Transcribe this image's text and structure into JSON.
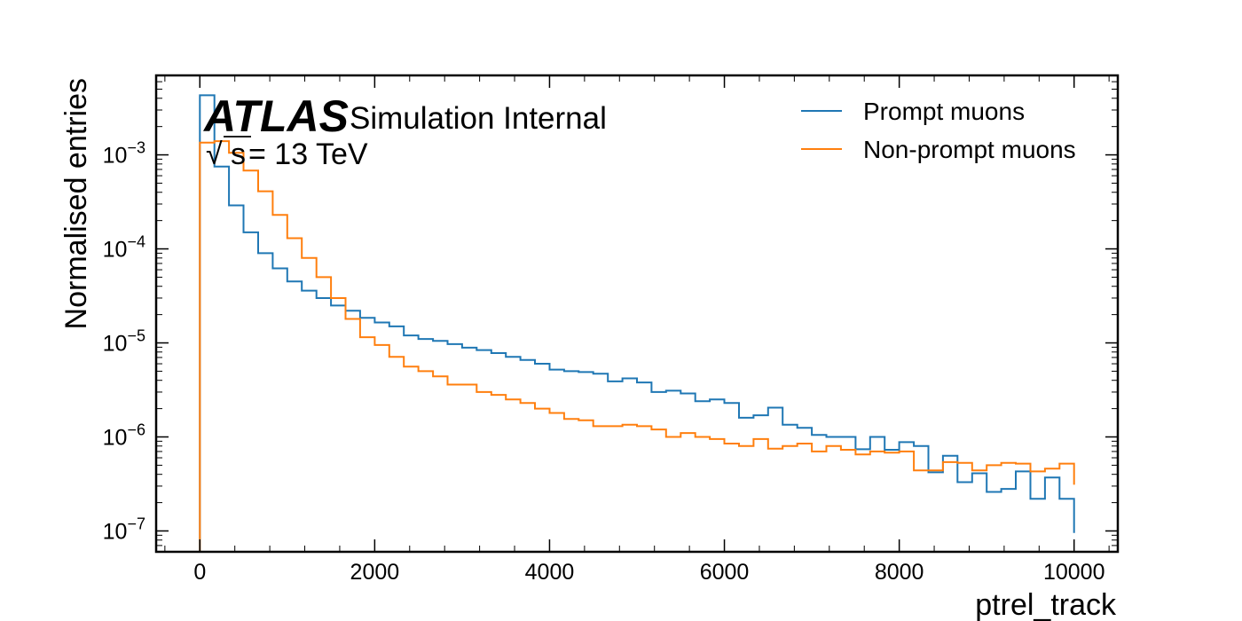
{
  "chart_data": {
    "type": "line",
    "title": "",
    "xlabel": "ptrel_track",
    "ylabel": "Normalised entries",
    "xlim": [
      -500,
      10500
    ],
    "ylim": [
      6e-08,
      0.007
    ],
    "yscale": "log",
    "x_ticks": [
      0,
      2000,
      4000,
      6000,
      8000,
      10000
    ],
    "x_tick_labels": [
      "0",
      "2000",
      "4000",
      "6000",
      "8000",
      "10000"
    ],
    "y_ticks": [
      1e-07,
      1e-06,
      1e-05,
      0.0001,
      0.001
    ],
    "y_tick_bases": [
      "10",
      "10",
      "10",
      "10",
      "10"
    ],
    "y_tick_exponents": [
      "−7",
      "−6",
      "−5",
      "−4",
      "−3"
    ],
    "grid": false,
    "legend_position": "top-right",
    "annotation": {
      "atlas": "ATLAS",
      "subtitle": "Simulation Internal",
      "energy_sqrt": "√",
      "energy_s": "s",
      "energy_rest": " = 13 TeV"
    },
    "bin_edges": [
      0,
      166.67,
      333.33,
      500,
      666.67,
      833.33,
      1000,
      1166.67,
      1333.33,
      1500,
      1666.67,
      1833.33,
      2000,
      2166.67,
      2333.33,
      2500,
      2666.67,
      2833.33,
      3000,
      3166.67,
      3333.33,
      3500,
      3666.67,
      3833.33,
      4000,
      4166.67,
      4333.33,
      4500,
      4666.67,
      4833.33,
      5000,
      5166.67,
      5333.33,
      5500,
      5666.67,
      5833.33,
      6000,
      6166.67,
      6333.33,
      6500,
      6666.67,
      6833.33,
      7000,
      7166.67,
      7333.33,
      7500,
      7666.67,
      7833.33,
      8000,
      8166.67,
      8333.33,
      8500,
      8666.67,
      8833.33,
      9000,
      9166.67,
      9333.33,
      9500,
      9666.67,
      9833.33,
      10000
    ],
    "series": [
      {
        "name": "Prompt muons",
        "color": "#1f77b4",
        "values": [
          0.0043,
          0.00075,
          0.00029,
          0.00015,
          9e-05,
          6.2e-05,
          4.5e-05,
          3.6e-05,
          3e-05,
          2.5e-05,
          2.2e-05,
          1.85e-05,
          1.65e-05,
          1.5e-05,
          1.2e-05,
          1.1e-05,
          1.05e-05,
          9.7e-06,
          8.9e-06,
          8.4e-06,
          7.8e-06,
          7.1e-06,
          6.6e-06,
          6e-06,
          5.2e-06,
          5e-06,
          4.9e-06,
          4.7e-06,
          3.9e-06,
          4.2e-06,
          3.8e-06,
          3e-06,
          3.1e-06,
          2.9e-06,
          2.4e-06,
          2.5e-06,
          2.3e-06,
          1.6e-06,
          1.7e-06,
          2.05e-06,
          1.35e-06,
          1.25e-06,
          1.05e-06,
          1e-06,
          1e-06,
          7.4e-07,
          1e-06,
          7.3e-07,
          8.8e-07,
          8e-07,
          4.2e-07,
          6.3e-07,
          3.3e-07,
          4.1e-07,
          2.6e-07,
          2.8e-07,
          4.3e-07,
          2.2e-07,
          3.7e-07,
          2.2e-07,
          9.5e-08
        ]
      },
      {
        "name": "Non-prompt muons",
        "color": "#ff7f0e",
        "values": [
          0.00135,
          0.0014,
          0.00105,
          0.00068,
          0.00041,
          0.00023,
          0.00013,
          8e-05,
          5e-05,
          3e-05,
          1.8e-05,
          1.15e-05,
          9.5e-06,
          7.1e-06,
          5.6e-06,
          5e-06,
          4.4e-06,
          3.6e-06,
          3.6e-06,
          3e-06,
          2.8e-06,
          2.5e-06,
          2.3e-06,
          2e-06,
          1.8e-06,
          1.55e-06,
          1.5e-06,
          1.3e-06,
          1.3e-06,
          1.35e-06,
          1.3e-06,
          1.2e-06,
          1e-06,
          1.1e-06,
          1e-06,
          9.5e-07,
          8.5e-07,
          8e-07,
          9.5e-07,
          7.5e-07,
          8e-07,
          8.5e-07,
          7e-07,
          8e-07,
          7.3e-07,
          6.5e-07,
          7e-07,
          6.8e-07,
          7e-07,
          4.4e-07,
          4.4e-07,
          5.4e-07,
          5.3e-07,
          4.4e-07,
          5e-07,
          5.3e-07,
          5.2e-07,
          4.3e-07,
          4.6e-07,
          5.2e-07,
          3.1e-07
        ]
      }
    ]
  }
}
